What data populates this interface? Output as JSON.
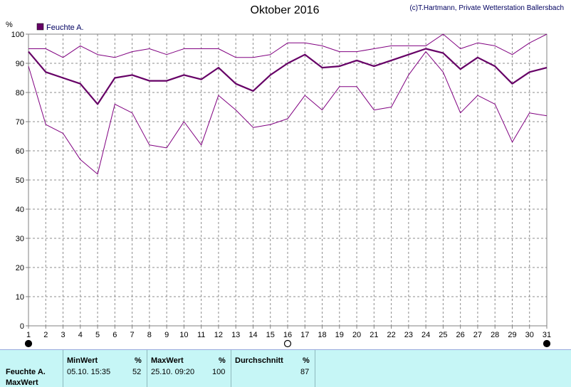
{
  "header": {
    "title": "Oktober 2016",
    "copyright": "(c)T.Hartmann, Private Wetterstation Ballersbach"
  },
  "chart_data": {
    "type": "line",
    "title": "Oktober 2016",
    "ylabel": "%",
    "xlabel": "",
    "ylim": [
      0,
      100
    ],
    "xlim": [
      1,
      31
    ],
    "y_ticks": [
      0,
      10,
      20,
      30,
      40,
      50,
      60,
      70,
      80,
      90,
      100
    ],
    "x_ticks": [
      1,
      2,
      3,
      4,
      5,
      6,
      7,
      8,
      9,
      10,
      11,
      12,
      13,
      14,
      15,
      16,
      17,
      18,
      19,
      20,
      21,
      22,
      23,
      24,
      25,
      26,
      27,
      28,
      29,
      30,
      31
    ],
    "grid": true,
    "legend_position": "top-left",
    "legend": [
      "Feuchte A."
    ],
    "x": [
      1,
      2,
      3,
      4,
      5,
      6,
      7,
      8,
      9,
      10,
      11,
      12,
      13,
      14,
      15,
      16,
      17,
      18,
      19,
      20,
      21,
      22,
      23,
      24,
      25,
      26,
      27,
      28,
      29,
      30,
      31
    ],
    "series": [
      {
        "name": "Feuchte A.",
        "role": "average",
        "color": "#660066",
        "values": [
          94,
          87,
          85,
          83,
          76,
          85,
          86,
          84,
          84,
          86,
          84.5,
          88.5,
          83,
          80.5,
          86,
          90,
          93,
          88.5,
          89,
          91,
          89,
          91,
          93,
          95,
          93.5,
          88,
          92,
          89,
          83,
          87,
          88.5
        ]
      },
      {
        "role": "max",
        "color": "#800080",
        "values": [
          95,
          95,
          92,
          96,
          93,
          92,
          94,
          95,
          93,
          95,
          95,
          95,
          92,
          92,
          93,
          97,
          97,
          96,
          94,
          94,
          95,
          96,
          96,
          96,
          100,
          95,
          97,
          96,
          93,
          97,
          100
        ]
      },
      {
        "role": "min",
        "color": "#800080",
        "values": [
          89,
          69,
          66,
          57,
          52,
          76,
          73,
          62,
          61,
          70,
          62,
          79,
          74,
          68,
          69,
          71,
          79,
          74,
          82,
          82,
          74,
          75,
          86,
          94,
          87,
          73,
          79,
          76,
          63,
          73,
          72
        ]
      }
    ],
    "markers": [
      {
        "day": 1,
        "symbol": "filled-circle"
      },
      {
        "day": 16,
        "symbol": "open-circle"
      },
      {
        "day": 31,
        "symbol": "filled-circle"
      }
    ]
  },
  "stats": {
    "row_label": "Feuchte A.",
    "row_label2": "MaxWert",
    "min_header": "MinWert",
    "min_unit": "%",
    "min_time": "05.10.  15:35",
    "min_value": "52",
    "max_header": "MaxWert",
    "max_unit": "%",
    "max_time": "25.10.  09:20",
    "max_value": "100",
    "avg_header": "Durchschnitt",
    "avg_unit": "%",
    "avg_value": "87"
  }
}
